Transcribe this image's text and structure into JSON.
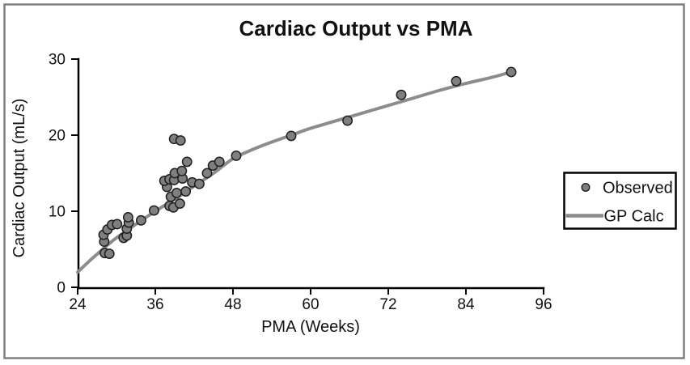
{
  "figure": {
    "frame_color": "#7f7f7f",
    "background": "#ffffff"
  },
  "colors": {
    "marker_fill": "#7f7f7f",
    "marker_edge": "#1f1f1f",
    "curve": "#8c8c8c",
    "axis": "#000000",
    "text": "#111111",
    "legend_border": "#000000"
  },
  "legend": {
    "position": "right-outside",
    "items": [
      {
        "label": "Observed",
        "marker": "circle-icon"
      },
      {
        "label": "GP Calc",
        "marker": "line-icon"
      }
    ]
  },
  "chart_data": {
    "type": "scatter",
    "title": "Cardiac Output vs PMA",
    "xlabel": "PMA (Weeks)",
    "ylabel": "Cardiac Output (mL/s)",
    "xlim": [
      24,
      96
    ],
    "ylim": [
      0,
      30
    ],
    "x_ticks": [
      24,
      36,
      48,
      60,
      72,
      84,
      96
    ],
    "y_ticks": [
      0,
      10,
      20,
      30
    ],
    "grid": false,
    "legend_position": "right-outside",
    "series": [
      {
        "name": "Observed",
        "type": "scatter",
        "marker": "circle",
        "marker_fill": "#7f7f7f",
        "marker_edge": "#1f1f1f",
        "points": [
          [
            28.2,
            4.5
          ],
          [
            28.9,
            4.4
          ],
          [
            28.1,
            6.0
          ],
          [
            28.0,
            6.9
          ],
          [
            28.6,
            7.6
          ],
          [
            29.3,
            8.2
          ],
          [
            30.1,
            8.3
          ],
          [
            31.1,
            6.5
          ],
          [
            31.6,
            6.8
          ],
          [
            31.6,
            7.7
          ],
          [
            31.9,
            8.5
          ],
          [
            31.8,
            9.2
          ],
          [
            33.8,
            8.8
          ],
          [
            35.8,
            10.1
          ],
          [
            38.2,
            10.7
          ],
          [
            38.8,
            10.5
          ],
          [
            39.8,
            11.0
          ],
          [
            38.4,
            11.9
          ],
          [
            39.3,
            12.4
          ],
          [
            40.7,
            12.6
          ],
          [
            37.8,
            13.2
          ],
          [
            41.7,
            13.8
          ],
          [
            42.8,
            13.6
          ],
          [
            37.4,
            14.0
          ],
          [
            38.2,
            14.2
          ],
          [
            38.9,
            14.1
          ],
          [
            40.2,
            14.3
          ],
          [
            39.0,
            15.0
          ],
          [
            40.1,
            15.3
          ],
          [
            40.9,
            16.5
          ],
          [
            38.9,
            19.5
          ],
          [
            39.9,
            19.3
          ],
          [
            44.0,
            15.0
          ],
          [
            44.9,
            16.0
          ],
          [
            45.9,
            16.5
          ],
          [
            48.5,
            17.3
          ],
          [
            57.0,
            19.9
          ],
          [
            65.7,
            21.9
          ],
          [
            74.0,
            25.3
          ],
          [
            82.5,
            27.1
          ],
          [
            91.0,
            28.3
          ]
        ]
      },
      {
        "name": "GP Calc",
        "type": "line",
        "color": "#8c8c8c",
        "points": [
          [
            24,
            2.0
          ],
          [
            26,
            3.6
          ],
          [
            28,
            5.1
          ],
          [
            30,
            6.5
          ],
          [
            33,
            8.3
          ],
          [
            36,
            10.0
          ],
          [
            39,
            11.6
          ],
          [
            42,
            13.3
          ],
          [
            45,
            15.0
          ],
          [
            48,
            16.9
          ],
          [
            51,
            18.1
          ],
          [
            54,
            19.1
          ],
          [
            57,
            20.0
          ],
          [
            60,
            20.9
          ],
          [
            64,
            21.9
          ],
          [
            68,
            22.9
          ],
          [
            72,
            23.9
          ],
          [
            76,
            24.9
          ],
          [
            80,
            25.9
          ],
          [
            84,
            26.8
          ],
          [
            88,
            27.6
          ],
          [
            91,
            28.3
          ]
        ]
      }
    ]
  }
}
